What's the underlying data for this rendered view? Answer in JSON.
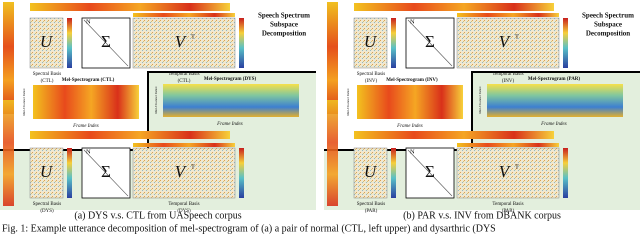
{
  "panels": [
    {
      "n": "N",
      "u": "U",
      "sigma": "Σ",
      "vt": "V",
      "vt_sup": "T",
      "title": [
        "Speech Spectrum",
        "Subspace",
        "Decomposition"
      ],
      "spectral_top": [
        "Spectral Basis",
        "(CTL)"
      ],
      "temporal_top": [
        "Temporal Basis",
        "(CTL)"
      ],
      "mel_left": "Mel-Spectrogram (CTL)",
      "mel_right": "Mel-Spectrogram (DYS)",
      "frame_index": "Frame Index",
      "mel_channel": "Mel-Channel Index",
      "spectral_bottom": [
        "Spectral Basis",
        "(DYS)"
      ],
      "temporal_bottom": [
        "Temporal Basis",
        "(DYS)"
      ],
      "caption": "(a) DYS v.s. CTL from UASpeech corpus"
    },
    {
      "n": "N",
      "u": "U",
      "sigma": "Σ",
      "vt": "V",
      "vt_sup": "T",
      "title": [
        "Speech Spectrum",
        "Subspace",
        "Decomposition"
      ],
      "spectral_top": [
        "Spectral Basis",
        "(INV)"
      ],
      "temporal_top": [
        "Temporal Basis",
        "(INV)"
      ],
      "mel_left": "Mel-Spectrogram (INV)",
      "mel_right": "Mel-Spectrogram (PAR)",
      "frame_index": "Frame Index",
      "mel_channel": "Mel-Channel Index",
      "spectral_bottom": [
        "Spectral Basis",
        "(PAR)"
      ],
      "temporal_bottom": [
        "Temporal Basis",
        "(PAR)"
      ],
      "caption": "(b) PAR v.s. INV from DBANK corpus"
    }
  ],
  "figure_caption": "Fig. 1: Example utterance decomposition of mel-spectrogram of (a) a pair of normal (CTL, left upper) and dysarthric (DYS"
}
